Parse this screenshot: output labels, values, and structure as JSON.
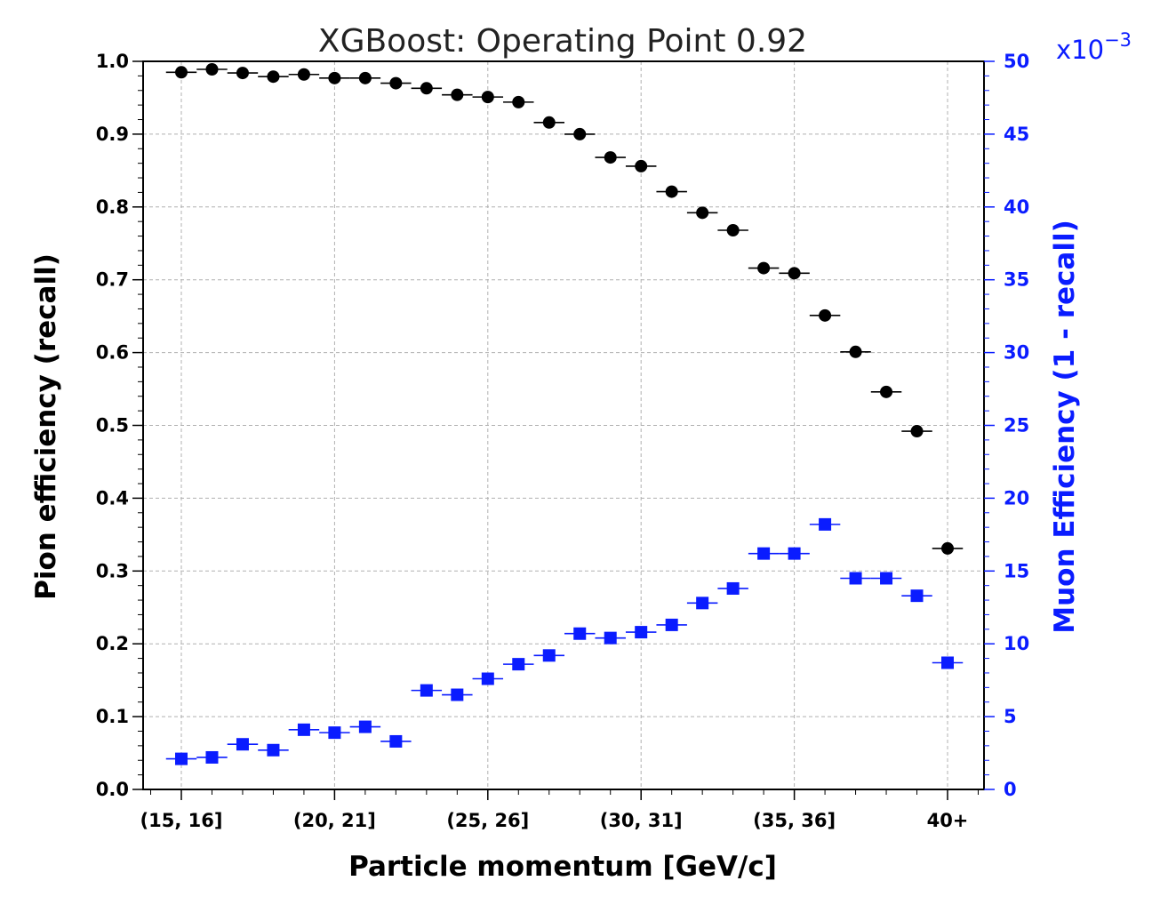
{
  "chart_data": {
    "type": "scatter",
    "title": "XGBoost: Operating Point 0.92",
    "xlabel": "Particle momentum [GeV/c]",
    "ylabel": "Pion efficiency (recall)",
    "ylabel_right": "Muon Efficiency (1 - recall)",
    "right_axis_multiplier": "x10",
    "right_axis_exponent": "−3",
    "ylim": [
      0,
      1.0
    ],
    "ylim_right": [
      0,
      50
    ],
    "grid": true,
    "x_tick_labels": [
      "(15, 16]",
      "(20, 21]",
      "(25, 26]",
      "(30, 31]",
      "(35, 36]",
      "40+"
    ],
    "y_tick_labels": [
      "0.0",
      "0.1",
      "0.2",
      "0.3",
      "0.4",
      "0.5",
      "0.6",
      "0.7",
      "0.8",
      "0.9",
      "1.0"
    ],
    "y_right_tick_labels": [
      "0",
      "5",
      "10",
      "15",
      "20",
      "25",
      "30",
      "35",
      "40",
      "45",
      "50"
    ],
    "categories": [
      "(15, 16]",
      "(16, 17]",
      "(17, 18]",
      "(18, 19]",
      "(19, 20]",
      "(20, 21]",
      "(21, 22]",
      "(22, 23]",
      "(23, 24]",
      "(24, 25]",
      "(25, 26]",
      "(26, 27]",
      "(27, 28]",
      "(28, 29]",
      "(29, 30]",
      "(30, 31]",
      "(31, 32]",
      "(32, 33]",
      "(33, 34]",
      "(34, 35]",
      "(35, 36]",
      "(36, 37]",
      "(37, 38]",
      "(38, 39]",
      "(39, 40]",
      "40+"
    ],
    "series": [
      {
        "axis": "left",
        "marker": "circle",
        "color": "#000000",
        "values": [
          0.985,
          0.989,
          0.984,
          0.979,
          0.982,
          0.977,
          0.977,
          0.97,
          0.963,
          0.954,
          0.951,
          0.944,
          0.916,
          0.9,
          0.868,
          0.856,
          0.821,
          0.792,
          0.768,
          0.716,
          0.709,
          0.651,
          0.601,
          0.546,
          0.492,
          0.331
        ]
      },
      {
        "axis": "right",
        "marker": "square",
        "color": "#0a1cff",
        "values": [
          2.1,
          2.2,
          3.1,
          2.7,
          4.1,
          3.9,
          4.3,
          3.3,
          6.8,
          6.5,
          7.6,
          8.6,
          9.2,
          10.7,
          10.4,
          10.8,
          11.3,
          12.8,
          13.8,
          16.2,
          16.2,
          18.2,
          14.5,
          14.5,
          13.3,
          8.7
        ]
      }
    ]
  }
}
